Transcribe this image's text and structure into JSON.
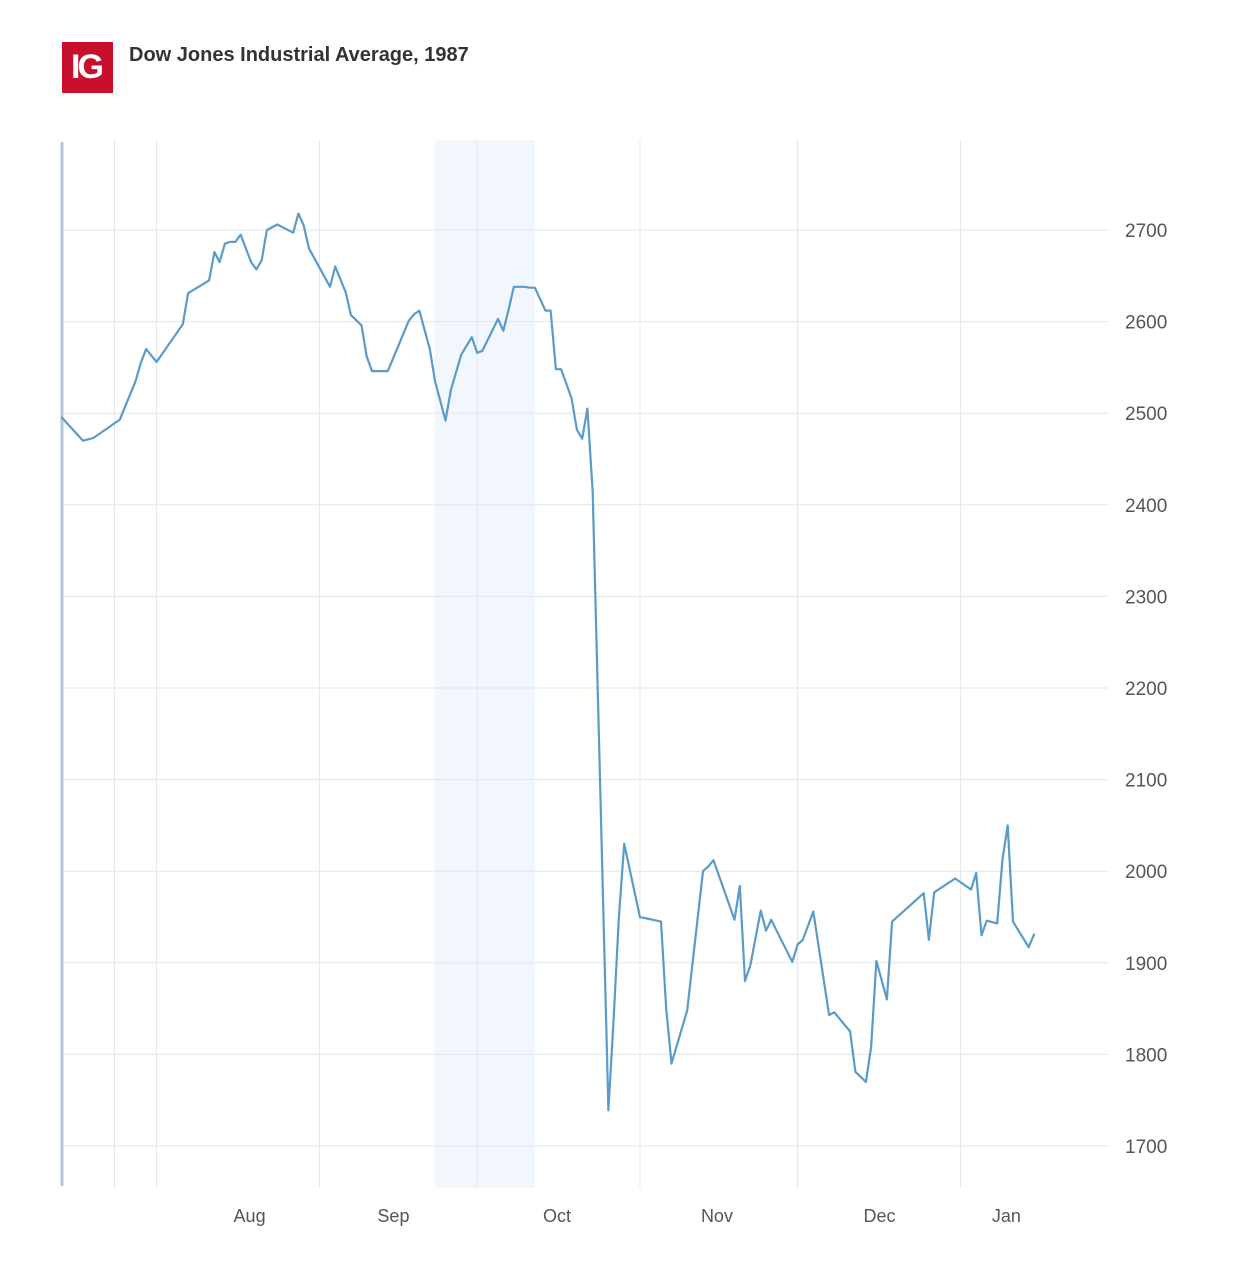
{
  "header": {
    "logo_text": "IG",
    "title": "Dow Jones Industrial Average, 1987"
  },
  "colors": {
    "logo_bg": "#c8102e",
    "line": "#5b9bc8",
    "highlight_band": "#f2f7fd",
    "grid": "#e3e6ea",
    "left_axis": "#b9c3da"
  },
  "chart_data": {
    "type": "line",
    "title": "Dow Jones Industrial Average, 1987",
    "xlabel": "",
    "ylabel": "",
    "ylim": [
      1655,
      2800
    ],
    "yticks": [
      1700,
      1800,
      1900,
      2000,
      2100,
      2200,
      2300,
      2400,
      2500,
      2600,
      2700
    ],
    "x_range": [
      "1987-07-14",
      "1988-01-22"
    ],
    "x_month_labels": [
      {
        "label": "Aug",
        "date": "1987-08-01"
      },
      {
        "label": "Sep",
        "date": "1987-09-01"
      },
      {
        "label": "Oct",
        "date": "1987-10-01"
      },
      {
        "label": "Nov",
        "date": "1987-11-01"
      },
      {
        "label": "Dec",
        "date": "1987-12-01"
      },
      {
        "label": "Jan",
        "date": "1988-01-01"
      }
    ],
    "highlight": {
      "start": "1987-09-23",
      "end": "1987-10-12"
    },
    "grid": true,
    "legend": "none",
    "series": [
      {
        "x": [
          "1987-07-14",
          "1987-07-18",
          "1987-07-20",
          "1987-07-22",
          "1987-07-25",
          "1987-07-28",
          "1987-07-29",
          "1987-07-30",
          "1987-08-01",
          "1987-08-06",
          "1987-08-07",
          "1987-08-11",
          "1987-08-12",
          "1987-08-13",
          "1987-08-14",
          "1987-08-15",
          "1987-08-16",
          "1987-08-17",
          "1987-08-19",
          "1987-08-20",
          "1987-08-21",
          "1987-08-22",
          "1987-08-24",
          "1987-08-25",
          "1987-08-27",
          "1987-08-28",
          "1987-08-29",
          "1987-08-30",
          "1987-09-03",
          "1987-09-04",
          "1987-09-06",
          "1987-09-07",
          "1987-09-09",
          "1987-09-10",
          "1987-09-11",
          "1987-09-14",
          "1987-09-18",
          "1987-09-19",
          "1987-09-20",
          "1987-09-22",
          "1987-09-23",
          "1987-09-25",
          "1987-09-26",
          "1987-09-28",
          "1987-09-30",
          "1987-10-01",
          "1987-10-02",
          "1987-10-05",
          "1987-10-06",
          "1987-10-07",
          "1987-10-08",
          "1987-10-09",
          "1987-10-10",
          "1987-10-11",
          "1987-10-12",
          "1987-10-14",
          "1987-10-15",
          "1987-10-16",
          "1987-10-17",
          "1987-10-19",
          "1987-10-20",
          "1987-10-21",
          "1987-10-22",
          "1987-10-23",
          "1987-10-26",
          "1987-10-27",
          "1987-10-28",
          "1987-10-29",
          "1987-11-01",
          "1987-11-05",
          "1987-11-06",
          "1987-11-07",
          "1987-11-10",
          "1987-11-13",
          "1987-11-14",
          "1987-11-15",
          "1987-11-19",
          "1987-11-20",
          "1987-11-21",
          "1987-11-22",
          "1987-11-24",
          "1987-11-25",
          "1987-11-26",
          "1987-11-27",
          "1987-11-30",
          "1987-12-01",
          "1987-12-02",
          "1987-12-04",
          "1987-12-07",
          "1987-12-08",
          "1987-12-11",
          "1987-12-12",
          "1987-12-14",
          "1987-12-15",
          "1987-12-16",
          "1987-12-18",
          "1987-12-19",
          "1987-12-25",
          "1987-12-26",
          "1987-12-27",
          "1987-12-31",
          "1988-01-03",
          "1988-01-04",
          "1988-01-05",
          "1988-01-06",
          "1988-01-08",
          "1988-01-09",
          "1988-01-10",
          "1988-01-11",
          "1988-01-14",
          "1988-01-15"
        ],
        "y": [
          2495,
          2470,
          2473,
          2481,
          2493,
          2535,
          2555,
          2570,
          2556,
          2597,
          2631,
          2645,
          2676,
          2665,
          2685,
          2687,
          2687,
          2695,
          2665,
          2657,
          2667,
          2700,
          2706,
          2703,
          2697,
          2718,
          2705,
          2680,
          2638,
          2660,
          2632,
          2607,
          2596,
          2562,
          2546,
          2546,
          2601,
          2608,
          2612,
          2570,
          2535,
          2492,
          2525,
          2564,
          2583,
          2566,
          2568,
          2603,
          2590,
          2613,
          2638,
          2638,
          2638,
          2637,
          2637,
          2612,
          2612,
          2548,
          2548,
          2516,
          2482,
          2472,
          2505,
          2414,
          1739,
          1840,
          1950,
          2030,
          1950,
          1945,
          1850,
          1790,
          1848,
          2000,
          2005,
          2012,
          1947,
          1984,
          1880,
          1897,
          1957,
          1935,
          1947,
          1935,
          1901,
          1920,
          1925,
          1956,
          1843,
          1846,
          1825,
          1781,
          1770,
          1808,
          1902,
          1860,
          1945,
          1976,
          1925,
          1977,
          1992,
          1980,
          1998,
          1930,
          1946,
          1943,
          2013,
          2050,
          1945,
          1917,
          1931
        ]
      }
    ]
  }
}
